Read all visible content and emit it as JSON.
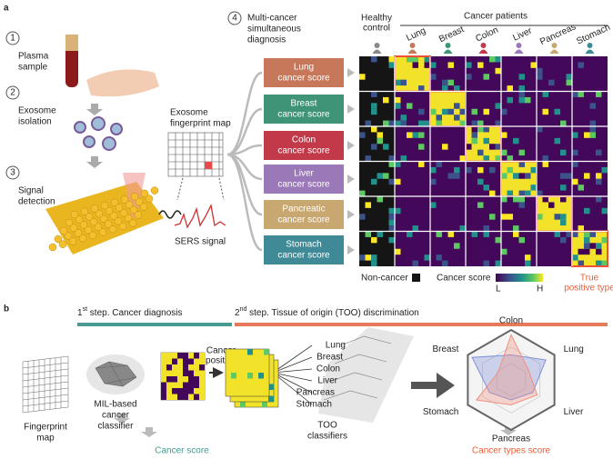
{
  "panel_a": {
    "label": "a",
    "steps": [
      {
        "number": "1",
        "lines": [
          "Plasma",
          "sample"
        ]
      },
      {
        "number": "2",
        "lines": [
          "Exosome",
          "isolation"
        ]
      },
      {
        "number": "3",
        "lines": [
          "Signal",
          "detection"
        ]
      },
      {
        "number": "4",
        "lines": [
          "Multi-cancer",
          "simultaneous",
          "diagnosis"
        ]
      }
    ],
    "fingerprint_label": [
      "Exosome",
      "fingerprint map"
    ],
    "sers_label": "SERS signal",
    "scores": [
      {
        "lines": [
          "Lung",
          "cancer score"
        ],
        "color": "#c8785a"
      },
      {
        "lines": [
          "Breast",
          "cancer score"
        ],
        "color": "#3f9478"
      },
      {
        "lines": [
          "Colon",
          "cancer score"
        ],
        "color": "#c23a4a"
      },
      {
        "lines": [
          "Liver",
          "cancer score"
        ],
        "color": "#9b78b8"
      },
      {
        "lines": [
          "Pancreatic",
          "cancer score"
        ],
        "color": "#c8a870"
      },
      {
        "lines": [
          "Stomach",
          "cancer score"
        ],
        "color": "#3f8a96"
      }
    ],
    "heatmap": {
      "healthy": [
        "Healthy",
        "control"
      ],
      "patients": "Cancer patients",
      "columns": [
        "Lung",
        "Breast",
        "Colon",
        "Liver",
        "Pancreas",
        "Stomach"
      ],
      "legend": {
        "non_cancer": "Non-cancer",
        "score": "Cancer score",
        "low": "L",
        "high": "H",
        "true_positive": [
          "True",
          "positive type"
        ]
      }
    }
  },
  "panel_b": {
    "label": "b",
    "step1": {
      "number": "1",
      "sup": "st",
      "text": " step. Cancer diagnosis"
    },
    "step2": {
      "number": "2",
      "sup": "nd",
      "text": " step. Tissue of origin (TOO) discrimination"
    },
    "fingerprint": [
      "Fingerprint",
      "map"
    ],
    "classifier": [
      "MIL-based",
      "cancer",
      "classifier"
    ],
    "positive": [
      "Cancer",
      "positive"
    ],
    "cancer_score": "Cancer score",
    "too_labels": [
      "Lung",
      "Breast",
      "Colon",
      "Liver",
      "Pancreas",
      "Stomach"
    ],
    "too_classifiers": [
      "TOO",
      "classifiers"
    ],
    "radar": [
      "Colon",
      "Lung",
      "Liver",
      "Pancreas",
      "Stomach",
      "Breast"
    ],
    "types_score": "Cancer types score"
  }
}
